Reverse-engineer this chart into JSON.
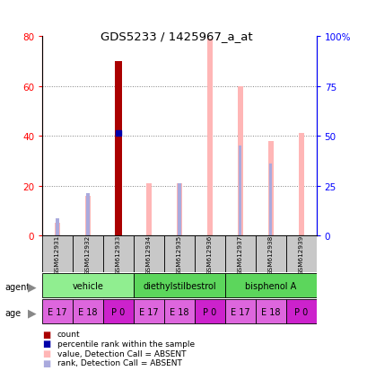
{
  "title": "GDS5233 / 1425967_a_at",
  "samples": [
    "GSM612931",
    "GSM612932",
    "GSM612933",
    "GSM612934",
    "GSM612935",
    "GSM612936",
    "GSM612937",
    "GSM612938",
    "GSM612939"
  ],
  "count_values": [
    0,
    0,
    70,
    0,
    0,
    0,
    0,
    0,
    0
  ],
  "rank_values": [
    0,
    0,
    41,
    0,
    0,
    0,
    0,
    0,
    0
  ],
  "absent_value_bars": [
    5,
    16,
    0,
    21,
    21,
    79,
    60,
    38,
    41
  ],
  "absent_rank_bars": [
    7,
    17,
    0,
    0,
    21,
    0,
    36,
    29,
    0
  ],
  "ages": [
    "E 17",
    "E 18",
    "P 0",
    "E 17",
    "E 18",
    "P 0",
    "E 17",
    "E 18",
    "P 0"
  ],
  "agent_groups": [
    {
      "label": "vehicle",
      "indices": [
        0,
        1,
        2
      ],
      "color": "#90EE90"
    },
    {
      "label": "diethylstilbestrol",
      "indices": [
        3,
        4,
        5
      ],
      "color": "#5CD65C"
    },
    {
      "label": "bisphenol A",
      "indices": [
        6,
        7,
        8
      ],
      "color": "#5CD65C"
    }
  ],
  "age_color_map": {
    "E 17": "#DD66DD",
    "E 18": "#DD66DD",
    "P 0": "#CC22CC"
  },
  "ylim_left": [
    0,
    80
  ],
  "ylim_right": [
    0,
    100
  ],
  "yticks_left": [
    0,
    20,
    40,
    60,
    80
  ],
  "yticks_right": [
    0,
    25,
    50,
    75,
    100
  ],
  "yticklabels_left": [
    "0",
    "20",
    "40",
    "60",
    "80"
  ],
  "yticklabels_right": [
    "0",
    "25",
    "50",
    "75",
    "100%"
  ],
  "count_color": "#AA0000",
  "rank_dot_color": "#0000AA",
  "absent_value_color": "#FFB6B6",
  "absent_rank_color": "#AAAADD",
  "thin_bar_width": 0.18,
  "count_bar_width": 0.25
}
